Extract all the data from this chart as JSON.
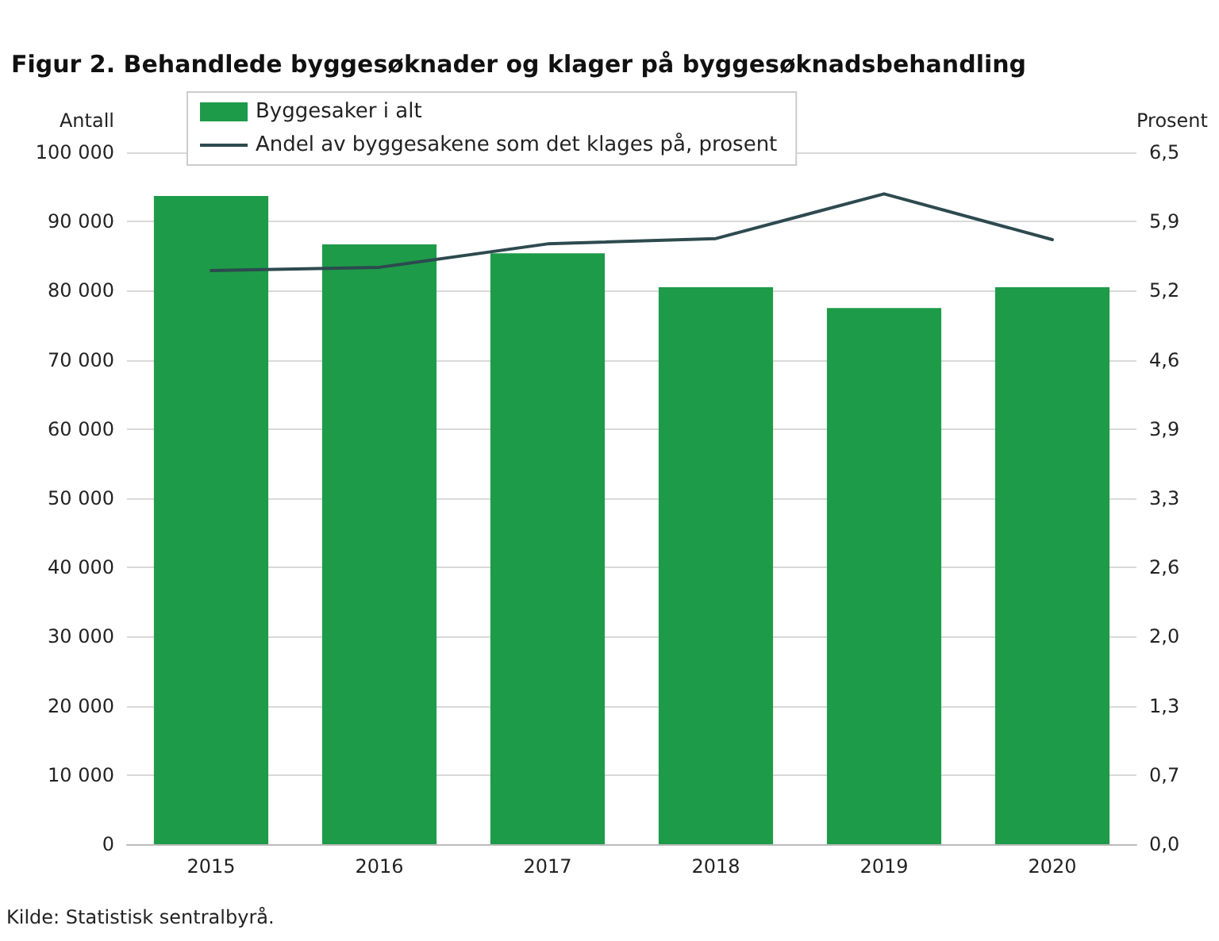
{
  "chart_data": {
    "type": "bar",
    "title": "Figur 2. Behandlede byggesøknader og klager på byggesøknadsbehandling",
    "categories": [
      "2015",
      "2016",
      "2017",
      "2018",
      "2019",
      "2020"
    ],
    "series": [
      {
        "name": "Byggesaker i alt",
        "color": "#1e9b48",
        "values": [
          93700,
          86700,
          85400,
          80500,
          77500,
          80500
        ]
      },
      {
        "name": "Andel av byggesakene som det klages på, prosent",
        "type": "line",
        "axis": "y2",
        "color": "#2d4a4f",
        "values": [
          5.39,
          5.42,
          5.64,
          5.69,
          6.11,
          5.68
        ]
      }
    ],
    "ylabel": "Antall",
    "y2label": "Prosent",
    "ylim": [
      0,
      100000
    ],
    "yticks": [
      {
        "value": 0,
        "label": "0"
      },
      {
        "value": 10000,
        "label": "10 000"
      },
      {
        "value": 20000,
        "label": "20 000"
      },
      {
        "value": 30000,
        "label": "30 000"
      },
      {
        "value": 40000,
        "label": "40 000"
      },
      {
        "value": 50000,
        "label": "50 000"
      },
      {
        "value": 60000,
        "label": "60 000"
      },
      {
        "value": 70000,
        "label": "70 000"
      },
      {
        "value": 80000,
        "label": "80 000"
      },
      {
        "value": 90000,
        "label": "90 000"
      },
      {
        "value": 100000,
        "label": "100 000"
      }
    ],
    "y2lim": [
      0,
      6.5
    ],
    "y2ticks": [
      {
        "value": 0,
        "label": "0,0"
      },
      {
        "value": 0.65,
        "label": "0,7"
      },
      {
        "value": 1.3,
        "label": "1,3"
      },
      {
        "value": 1.95,
        "label": "2,0"
      },
      {
        "value": 2.6,
        "label": "2,6"
      },
      {
        "value": 3.25,
        "label": "3,3"
      },
      {
        "value": 3.9,
        "label": "3,9"
      },
      {
        "value": 4.55,
        "label": "4,6"
      },
      {
        "value": 5.2,
        "label": "5,2"
      },
      {
        "value": 5.85,
        "label": "5,9"
      },
      {
        "value": 6.5,
        "label": "6,5"
      }
    ],
    "grid": "y",
    "legend": "top",
    "marker": "none",
    "line_style": "solid",
    "annotations": [
      "Kilde: Statistisk sentralbyrå."
    ]
  }
}
